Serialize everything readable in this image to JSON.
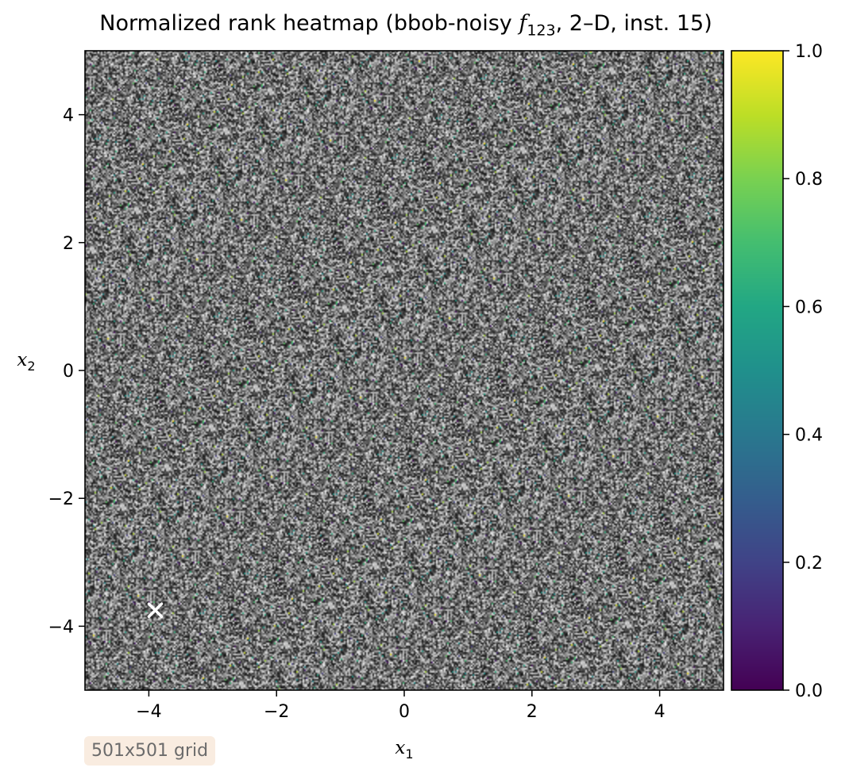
{
  "chart_data": {
    "type": "heatmap",
    "title": "Normalized rank heatmap (bbob-noisy f123, 2–D, inst. 15)",
    "title_parts": {
      "before": "Normalized rank heatmap (bbob-noisy ",
      "f": "f",
      "sub": "123",
      "after": ", 2–D, inst. 15)"
    },
    "xlabel": "x1",
    "ylabel": "x2",
    "xlabel_parts": {
      "var": "x",
      "sub": "1"
    },
    "ylabel_parts": {
      "var": "x",
      "sub": "2"
    },
    "xlim": [
      -5,
      5
    ],
    "ylim": [
      -5,
      5
    ],
    "x_ticks": [
      -4,
      -2,
      0,
      2,
      4
    ],
    "y_ticks": [
      -4,
      -2,
      0,
      2,
      4
    ],
    "x_tick_labels": [
      "−4",
      "−2",
      "0",
      "2",
      "4"
    ],
    "y_tick_labels": [
      "−4",
      "−2",
      "0",
      "2",
      "4"
    ],
    "grid_resolution": 501,
    "colormap": "viridis",
    "colorbar": {
      "range": [
        0.0,
        1.0
      ],
      "ticks": [
        0.0,
        0.2,
        0.4,
        0.6,
        0.8,
        1.0
      ],
      "tick_labels": [
        "0.0",
        "0.2",
        "0.4",
        "0.6",
        "0.8",
        "1.0"
      ]
    },
    "marker": {
      "symbol": "x",
      "x": -3.9,
      "y": -3.75,
      "color": "#ffffff"
    },
    "annotation": "501x501 grid",
    "grid": false
  }
}
